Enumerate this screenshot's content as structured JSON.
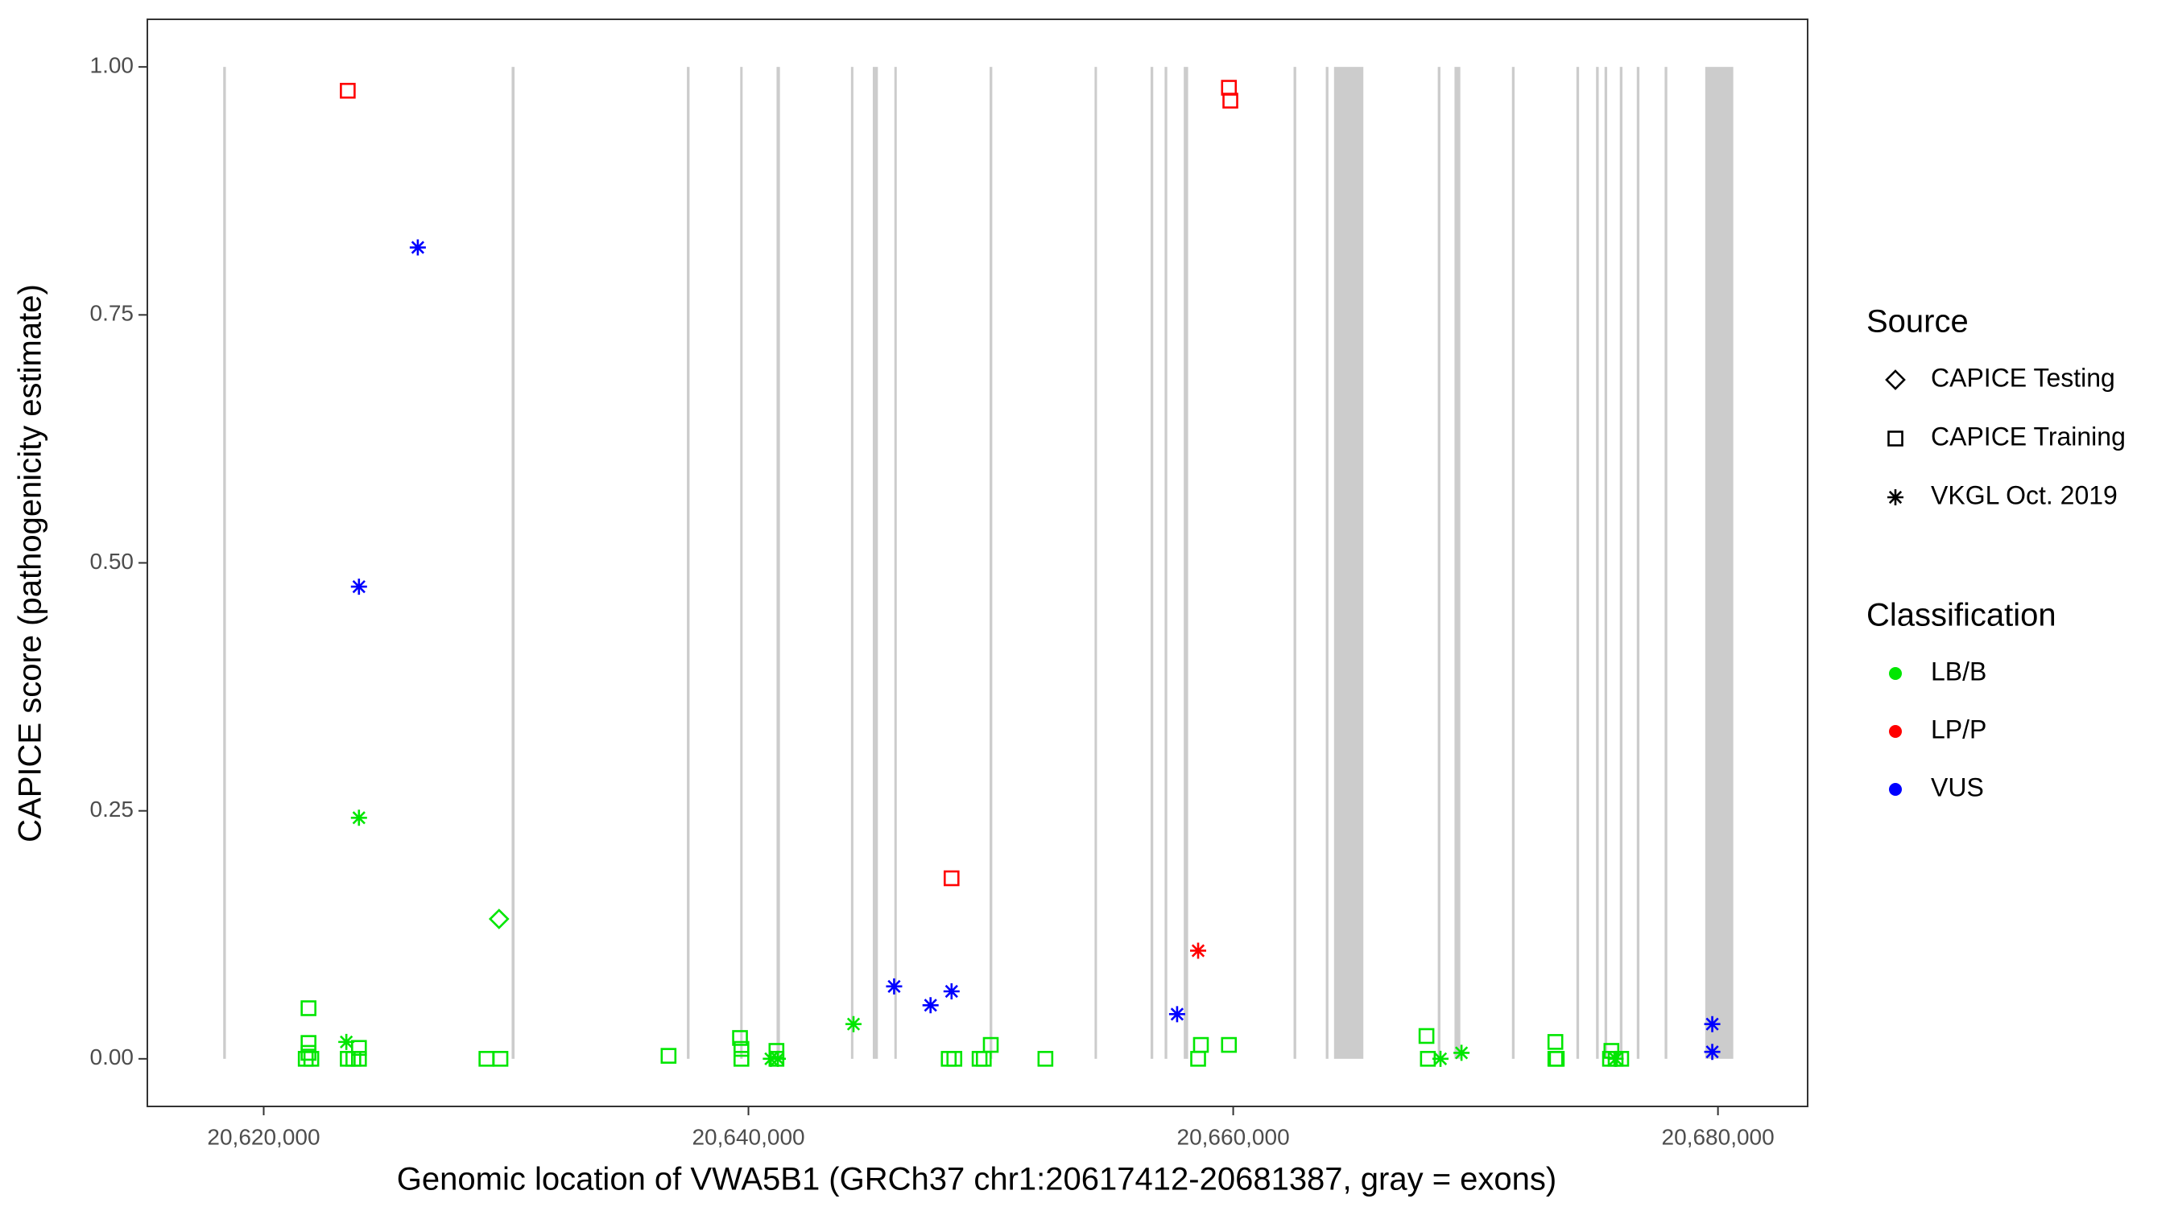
{
  "chart_data": {
    "type": "scatter",
    "xlabel": "Genomic location of VWA5B1 (GRCh37 chr1:20617412-20681387, gray = exons)",
    "ylabel": "CAPICE score (pathogenicity estimate)",
    "xlim": [
      20615200,
      20683700
    ],
    "ylim": [
      -0.048,
      1.048
    ],
    "xticks": [
      {
        "value": 20620000,
        "label": "20,620,000"
      },
      {
        "value": 20640000,
        "label": "20,640,000"
      },
      {
        "value": 20660000,
        "label": "20,660,000"
      },
      {
        "value": 20680000,
        "label": "20,680,000"
      }
    ],
    "yticks": [
      {
        "value": 0,
        "label": "0.00"
      },
      {
        "value": 0.25,
        "label": "0.25"
      },
      {
        "value": 0.5,
        "label": "0.50"
      },
      {
        "value": 0.75,
        "label": "0.75"
      },
      {
        "value": 1,
        "label": "1.00"
      }
    ],
    "exon_color": "#cccccc",
    "exons": [
      [
        20618330,
        20618440
      ],
      [
        20630230,
        20630350
      ],
      [
        20637460,
        20637570
      ],
      [
        20639660,
        20639760
      ],
      [
        20641160,
        20641300
      ],
      [
        20644230,
        20644330
      ],
      [
        20645130,
        20645340
      ],
      [
        20646020,
        20646120
      ],
      [
        20649950,
        20650060
      ],
      [
        20654280,
        20654380
      ],
      [
        20656590,
        20656700
      ],
      [
        20657170,
        20657280
      ],
      [
        20657960,
        20658140
      ],
      [
        20662490,
        20662600
      ],
      [
        20663820,
        20663930
      ],
      [
        20664160,
        20665370
      ],
      [
        20668440,
        20668550
      ],
      [
        20669130,
        20669370
      ],
      [
        20671500,
        20671610
      ],
      [
        20674160,
        20674270
      ],
      [
        20674970,
        20675080
      ],
      [
        20675320,
        20675430
      ],
      [
        20675950,
        20676060
      ],
      [
        20676650,
        20676760
      ],
      [
        20677800,
        20677910
      ],
      [
        20679476,
        20680632
      ]
    ],
    "legend_source": {
      "title": "Source",
      "items": [
        {
          "name": "CAPICE Testing",
          "shape": "diamond"
        },
        {
          "name": "CAPICE Training",
          "shape": "square"
        },
        {
          "name": "VKGL Oct. 2019",
          "shape": "asterisk"
        }
      ]
    },
    "legend_classification": {
      "title": "Classification",
      "items": [
        {
          "name": "LB/B",
          "color": "#00e600"
        },
        {
          "name": "LP/P",
          "color": "#ff0000"
        },
        {
          "name": "VUS",
          "color": "#0000ff"
        }
      ]
    },
    "series": [
      {
        "shape": "square",
        "color": "#ff0000",
        "x": [
          20623468,
          20659824,
          20659882,
          20648380
        ],
        "values": [
          0.976,
          0.979,
          0.966,
          0.182
        ]
      },
      {
        "shape": "asterisk",
        "color": "#ff0000",
        "x": [
          20658553
        ],
        "values": [
          0.109
        ]
      },
      {
        "shape": "asterisk",
        "color": "#0000ff",
        "x": [
          20626358,
          20623930,
          20646010,
          20647513,
          20648380,
          20657686,
          20679765,
          20679765
        ],
        "values": [
          0.818,
          0.476,
          0.073,
          0.054,
          0.068,
          0.045,
          0.035,
          0.007
        ]
      },
      {
        "shape": "diamond",
        "color": "#00e600",
        "x": [
          20629710
        ],
        "values": [
          0.141
        ]
      },
      {
        "shape": "asterisk",
        "color": "#00e600",
        "x": [
          20623930,
          20623410,
          20644334,
          20640924,
          20641213,
          20668552,
          20669419,
          20675777
        ],
        "values": [
          0.243,
          0.017,
          0.035,
          0,
          0,
          0,
          0.006,
          0
        ]
      },
      {
        "shape": "square",
        "color": "#00e600",
        "x": [
          20621850,
          20621850,
          20621850,
          20621734,
          20621965,
          20623468,
          20623699,
          20623930,
          20623930,
          20629190,
          20629768,
          20636704,
          20639652,
          20639710,
          20639710,
          20641155,
          20641155,
          20648264,
          20648495,
          20649536,
          20649709,
          20649998,
          20652252,
          20658553,
          20658668,
          20659824,
          20667974,
          20668032,
          20673292,
          20673292,
          20673349,
          20675546,
          20675604,
          20675777,
          20676008
        ],
        "values": [
          0.051,
          0.016,
          0.006,
          0,
          0,
          0,
          0,
          0.011,
          0,
          0,
          0,
          0.003,
          0.021,
          0.01,
          0,
          0.008,
          0,
          0,
          0,
          0,
          0,
          0.014,
          0,
          0,
          0.014,
          0.014,
          0.023,
          0,
          0.017,
          0,
          0,
          0,
          0.008,
          0,
          0
        ]
      }
    ]
  }
}
